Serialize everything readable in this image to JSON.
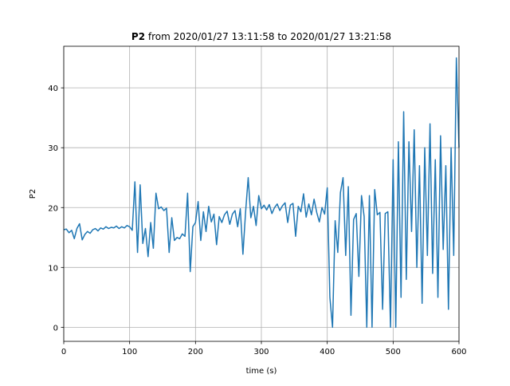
{
  "chart_data": {
    "type": "line",
    "title_parts": [
      "P2",
      "from 2020/01/27 13:11:58 to 2020/01/27 13:21:58"
    ],
    "xlabel": "time (s)",
    "ylabel": "P2",
    "x": [
      0,
      4,
      8,
      12,
      16,
      20,
      24,
      28,
      32,
      36,
      40,
      44,
      48,
      52,
      56,
      60,
      64,
      68,
      72,
      76,
      80,
      84,
      88,
      92,
      96,
      100,
      104,
      108,
      112,
      116,
      120,
      124,
      128,
      132,
      136,
      140,
      144,
      148,
      152,
      156,
      160,
      164,
      168,
      172,
      176,
      180,
      184,
      188,
      192,
      196,
      200,
      204,
      208,
      212,
      216,
      220,
      224,
      228,
      232,
      236,
      240,
      244,
      248,
      252,
      256,
      260,
      264,
      268,
      272,
      276,
      280,
      284,
      288,
      292,
      296,
      300,
      304,
      308,
      312,
      316,
      320,
      324,
      328,
      332,
      336,
      340,
      344,
      348,
      352,
      356,
      360,
      364,
      368,
      372,
      376,
      380,
      384,
      388,
      392,
      396,
      400,
      404,
      408,
      412,
      416,
      420,
      424,
      428,
      432,
      436,
      440,
      444,
      448,
      452,
      456,
      460,
      464,
      468,
      472,
      476,
      480,
      484,
      488,
      492,
      496,
      500,
      504,
      508,
      512,
      516,
      520,
      524,
      528,
      532,
      536,
      540,
      544,
      548,
      552,
      556,
      560,
      564,
      568,
      572,
      576,
      580,
      584,
      588,
      592,
      596,
      600
    ],
    "series": [
      {
        "name": "P2",
        "color": "#1f77b4",
        "values": [
          16.3,
          16.4,
          15.8,
          16.2,
          14.8,
          16.5,
          17.3,
          14.6,
          15.5,
          16.0,
          15.7,
          16.3,
          16.5,
          16.1,
          16.6,
          16.4,
          16.8,
          16.5,
          16.7,
          16.6,
          16.9,
          16.5,
          16.8,
          16.6,
          17.0,
          16.8,
          16.2,
          24.3,
          12.5,
          23.8,
          14.0,
          16.5,
          11.8,
          17.5,
          13.2,
          22.4,
          19.8,
          20.1,
          19.5,
          19.9,
          12.5,
          18.3,
          14.5,
          15.0,
          14.8,
          15.6,
          15.2,
          22.4,
          9.3,
          16.8,
          17.5,
          21.0,
          14.5,
          19.3,
          16.0,
          20.2,
          17.6,
          18.9,
          13.8,
          18.5,
          17.5,
          18.8,
          19.4,
          17.2,
          18.9,
          19.5,
          16.8,
          19.8,
          12.2,
          19.2,
          25.0,
          18.3,
          20.2,
          17.0,
          22.0,
          19.8,
          20.4,
          19.6,
          20.5,
          19.0,
          20.0,
          20.6,
          19.5,
          20.3,
          20.8,
          17.5,
          20.4,
          20.7,
          15.2,
          20.2,
          19.3,
          22.3,
          18.4,
          20.6,
          18.8,
          21.4,
          19.2,
          17.6,
          20.0,
          18.9,
          23.3,
          5.0,
          0,
          17.8,
          12.5,
          22.5,
          25.0,
          12.0,
          23.5,
          2.0,
          18.0,
          19.0,
          8.5,
          22.0,
          18.5,
          0,
          22.0,
          0,
          23.0,
          18.8,
          19.2,
          3.0,
          19.0,
          19.3,
          0,
          28.0,
          0,
          31.0,
          5.0,
          36.0,
          8.0,
          31.0,
          16.0,
          33.0,
          10.0,
          27.0,
          4.0,
          30.0,
          12.0,
          34.0,
          9.0,
          28.0,
          5.0,
          32.0,
          13.0,
          27.0,
          3.0,
          30.0,
          12.0,
          45.0,
          30.0
        ]
      }
    ],
    "xlim": [
      0,
      600
    ],
    "ylim": [
      -2.35,
      46.95
    ],
    "xticks": [
      0,
      100,
      200,
      300,
      400,
      500,
      600
    ],
    "yticks": [
      0,
      10,
      20,
      30,
      40
    ],
    "grid": true
  }
}
